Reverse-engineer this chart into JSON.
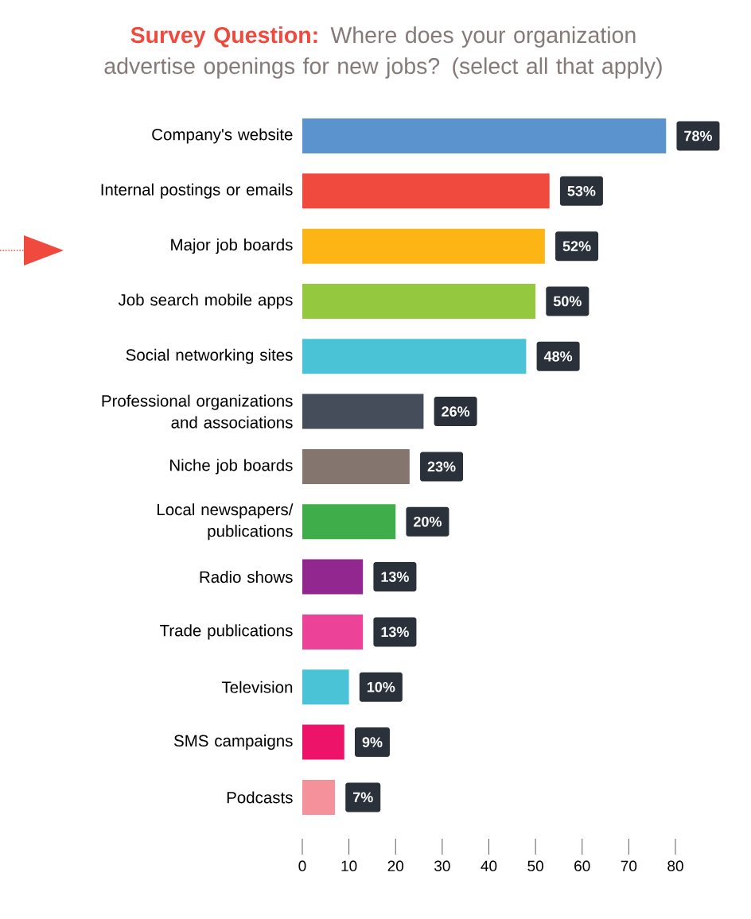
{
  "chart_data": {
    "type": "bar",
    "orientation": "horizontal",
    "title": "Survey Question:",
    "subtitle": "Where does your organization advertise openings for new jobs? (select all that apply)",
    "categories": [
      "Company's website",
      "Internal postings or emails",
      "Major job boards",
      "Job search mobile apps",
      "Social networking sites",
      "Professional organizations and associations",
      "Niche job boards",
      "Local newspapers/ publications",
      "Radio shows",
      "Trade publications",
      "Television",
      "SMS campaigns",
      "Podcasts"
    ],
    "values": [
      78,
      53,
      52,
      50,
      48,
      26,
      23,
      20,
      13,
      13,
      10,
      9,
      7
    ],
    "value_labels": [
      "78%",
      "53%",
      "52%",
      "50%",
      "48%",
      "26%",
      "23%",
      "20%",
      "13%",
      "13%",
      "10%",
      "9%",
      "7%"
    ],
    "colors": [
      "#5b93cf",
      "#f04a3e",
      "#fdb415",
      "#93c83f",
      "#4bc3d6",
      "#454d5a",
      "#84756f",
      "#3fae4a",
      "#92278f",
      "#ec4399",
      "#4bc3d6",
      "#ed1369",
      "#f4919b"
    ],
    "xlim": [
      0,
      80
    ],
    "xticks": [
      0,
      10,
      20,
      30,
      40,
      50,
      60,
      70,
      80
    ]
  }
}
